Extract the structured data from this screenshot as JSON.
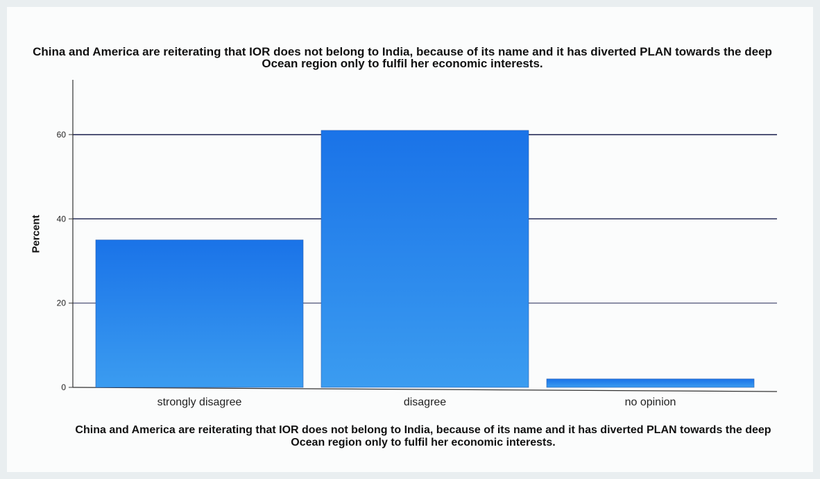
{
  "chart_data": {
    "type": "bar",
    "title": "China and America are reiterating that IOR does not belong to India, because of its name and it has diverted PLAN  towards the deep Ocean region only to fulfil her economic interests.",
    "xlabel": "China and America are reiterating that IOR does not belong to India, because of its name and it has diverted PLAN  towards the deep Ocean region only to fulfil her economic interests.",
    "ylabel": "Percent",
    "categories": [
      "strongly disagree",
      "disagree",
      "no opinion"
    ],
    "values": [
      35,
      61,
      2
    ],
    "ylim": [
      0,
      73
    ],
    "yticks": [
      0,
      20,
      40,
      60
    ],
    "grid": true,
    "colors": {
      "bar_top": "#1a73e8",
      "bar_bottom": "#3b9cf0",
      "grid": "#2a2f5a"
    }
  }
}
